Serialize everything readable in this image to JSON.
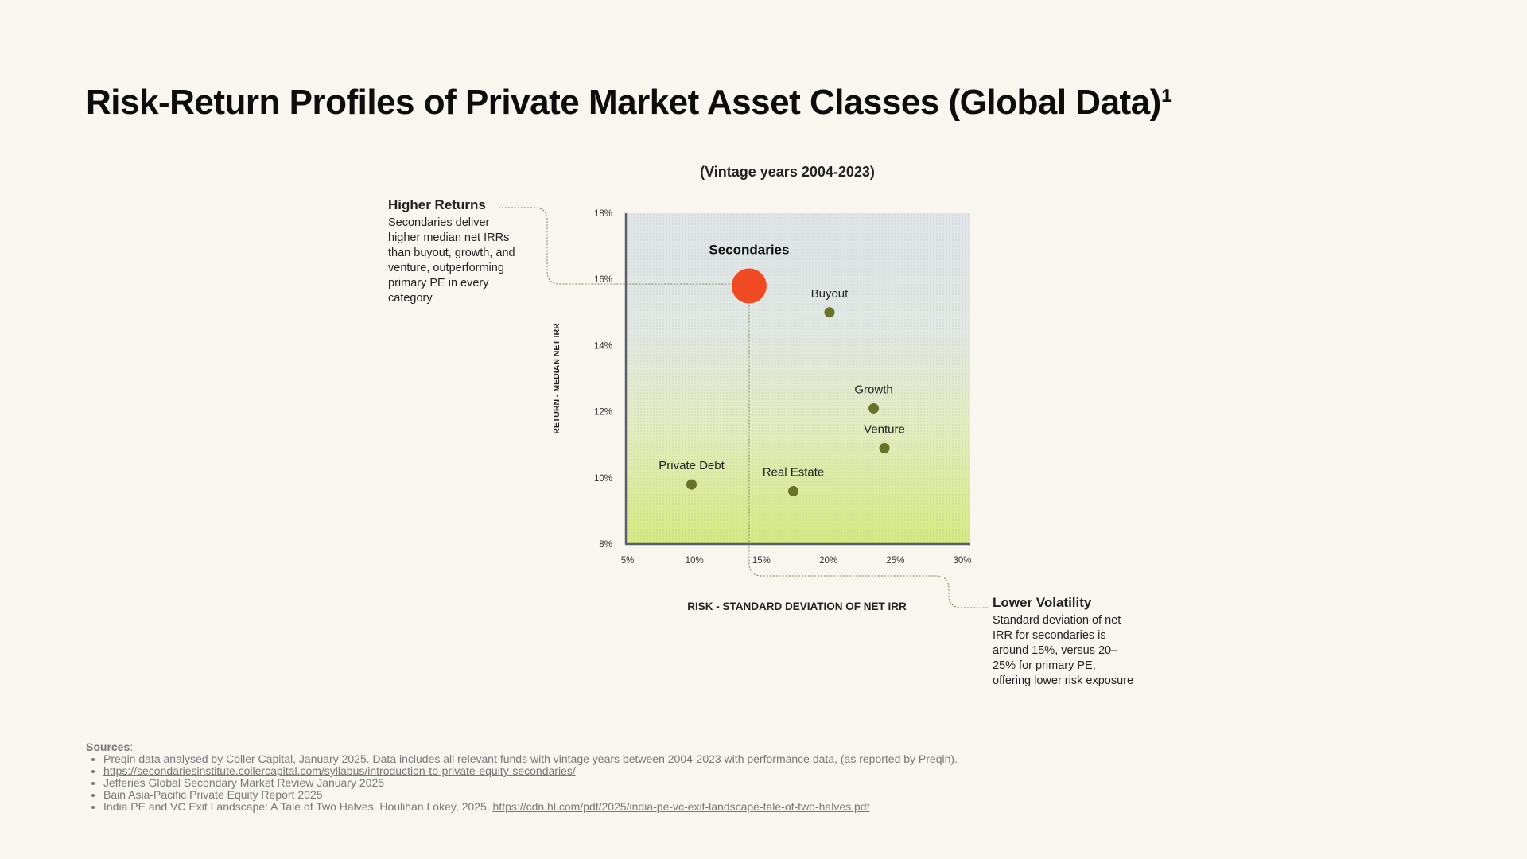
{
  "page": {
    "title": "Risk-Return Profiles of Private Market Asset Classes (Global Data)¹"
  },
  "chart_data": {
    "type": "scatter",
    "title": "(Vintage years 2004-2023)",
    "xlabel": "RISK - STANDARD DEVIATION OF NET IRR",
    "ylabel": "RETURN - MEDIAN NET IRR",
    "xlim": [
      5,
      30
    ],
    "ylim": [
      8,
      18
    ],
    "x_ticks": [
      "5%",
      "10%",
      "15%",
      "20%",
      "25%",
      "30%"
    ],
    "y_ticks": [
      "8%",
      "10%",
      "12%",
      "14%",
      "16%",
      "18%"
    ],
    "grid": false,
    "background": "gradient blue-grey top to lime green bottom with dot pattern",
    "points": [
      {
        "label": "Secondaries",
        "x": 14.2,
        "y": 15.8,
        "highlight": true
      },
      {
        "label": "Buyout",
        "x": 20.2,
        "y": 15.0
      },
      {
        "label": "Growth",
        "x": 23.5,
        "y": 12.1
      },
      {
        "label": "Venture",
        "x": 24.3,
        "y": 10.9
      },
      {
        "label": "Private Debt",
        "x": 9.9,
        "y": 9.8
      },
      {
        "label": "Real Estate",
        "x": 17.5,
        "y": 9.6
      }
    ],
    "colors": {
      "highlight": "#f04a23",
      "point": "#687228",
      "axis": "#5a5f6a",
      "connector": "#7d7d55"
    }
  },
  "callouts": {
    "left": {
      "heading": "Higher Returns",
      "body": "Secondaries deliver higher median net IRRs than buyout, growth, and venture, outperforming primary PE in every category"
    },
    "right": {
      "heading": "Lower Volatility",
      "body": "Standard deviation of net IRR for secondaries is around 15%, versus 20–25% for primary PE, offering lower risk exposure"
    }
  },
  "sources": {
    "title": "Sources",
    "items": [
      {
        "text": "Preqin data analysed by Coller Capital, January 2025. Data includes all relevant funds with vintage years between 2004-2023 with performance data, (as reported by Preqin).",
        "link": ""
      },
      {
        "text": "",
        "link": "https://secondariesinstitute.collercapital.com/syllabus/introduction-to-private-equity-secondaries/"
      },
      {
        "text": "Jefferies Global Secondary Market Review January 2025",
        "link": ""
      },
      {
        "text": "Bain Asia-Pacific Private Equity Report 2025",
        "link": ""
      },
      {
        "text": "India PE and VC Exit Landscape: A Tale of Two Halves. Houlihan Lokey, 2025.",
        "link": "https://cdn.hl.com/pdf/2025/india-pe-vc-exit-landscape-tale-of-two-halves.pdf"
      }
    ]
  }
}
